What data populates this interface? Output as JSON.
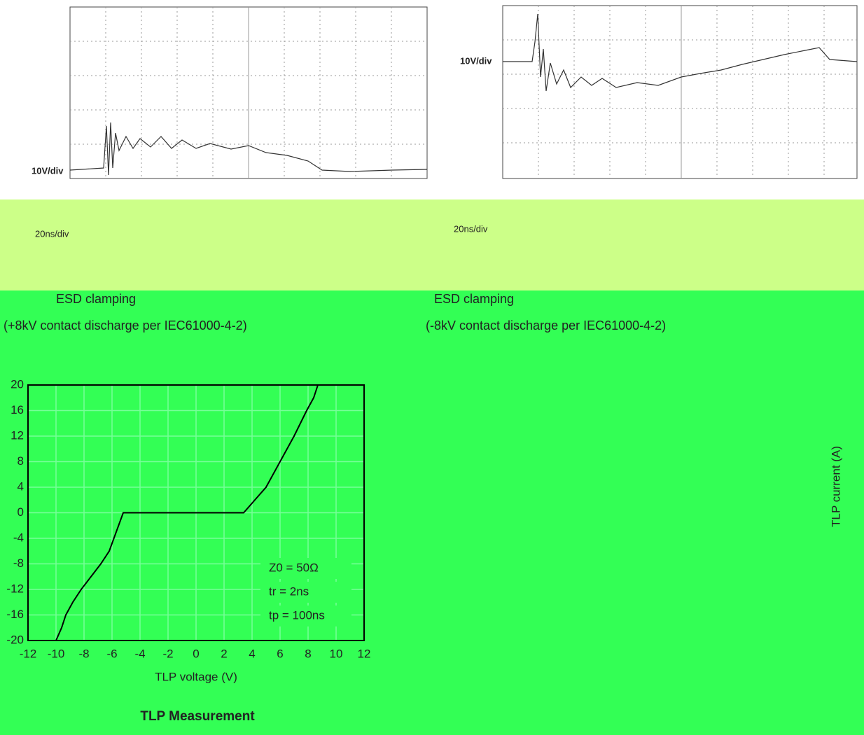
{
  "scope": {
    "left": {
      "vdiv": "10V/div",
      "tdiv": "20ns/div",
      "title": "ESD clamping",
      "subtitle": "(+8kV contact discharge per IEC61000-4-2)"
    },
    "right": {
      "vdiv": "10V/div",
      "tdiv": "20ns/div",
      "title": "ESD clamping",
      "subtitle": "(-8kV contact discharge per IEC61000-4-2)"
    }
  },
  "chart_data": {
    "type": "line",
    "title": "TLP Measurement",
    "x_label": "TLP voltage (V)",
    "y_label": "TLP current (A)",
    "x": [
      -10,
      -9.6,
      -9.3,
      -8.8,
      -8.2,
      -7.5,
      -6.8,
      -6.2,
      -5.2,
      -4,
      0,
      2,
      3.4,
      4.2,
      5,
      6,
      7,
      7.9,
      8.4,
      8.7
    ],
    "values": [
      -20,
      -18,
      -16,
      -14,
      -12,
      -10,
      -8,
      -6,
      0,
      0,
      0,
      0,
      0,
      2,
      4,
      8,
      12,
      16,
      18,
      20
    ],
    "color": "#000000",
    "xlim": [
      -12,
      12
    ],
    "xticks": [
      -12,
      -10,
      -8,
      -6,
      -4,
      -2,
      0,
      2,
      4,
      6,
      8,
      10,
      12
    ],
    "ylim": [
      -20,
      20
    ],
    "yticks": [
      -20,
      -16,
      -12,
      -8,
      -4,
      0,
      4,
      8,
      12,
      16,
      20
    ],
    "grid": true,
    "annotations": [
      "Z0 = 50Ω",
      "tr = 2ns",
      "tp = 100ns"
    ]
  }
}
